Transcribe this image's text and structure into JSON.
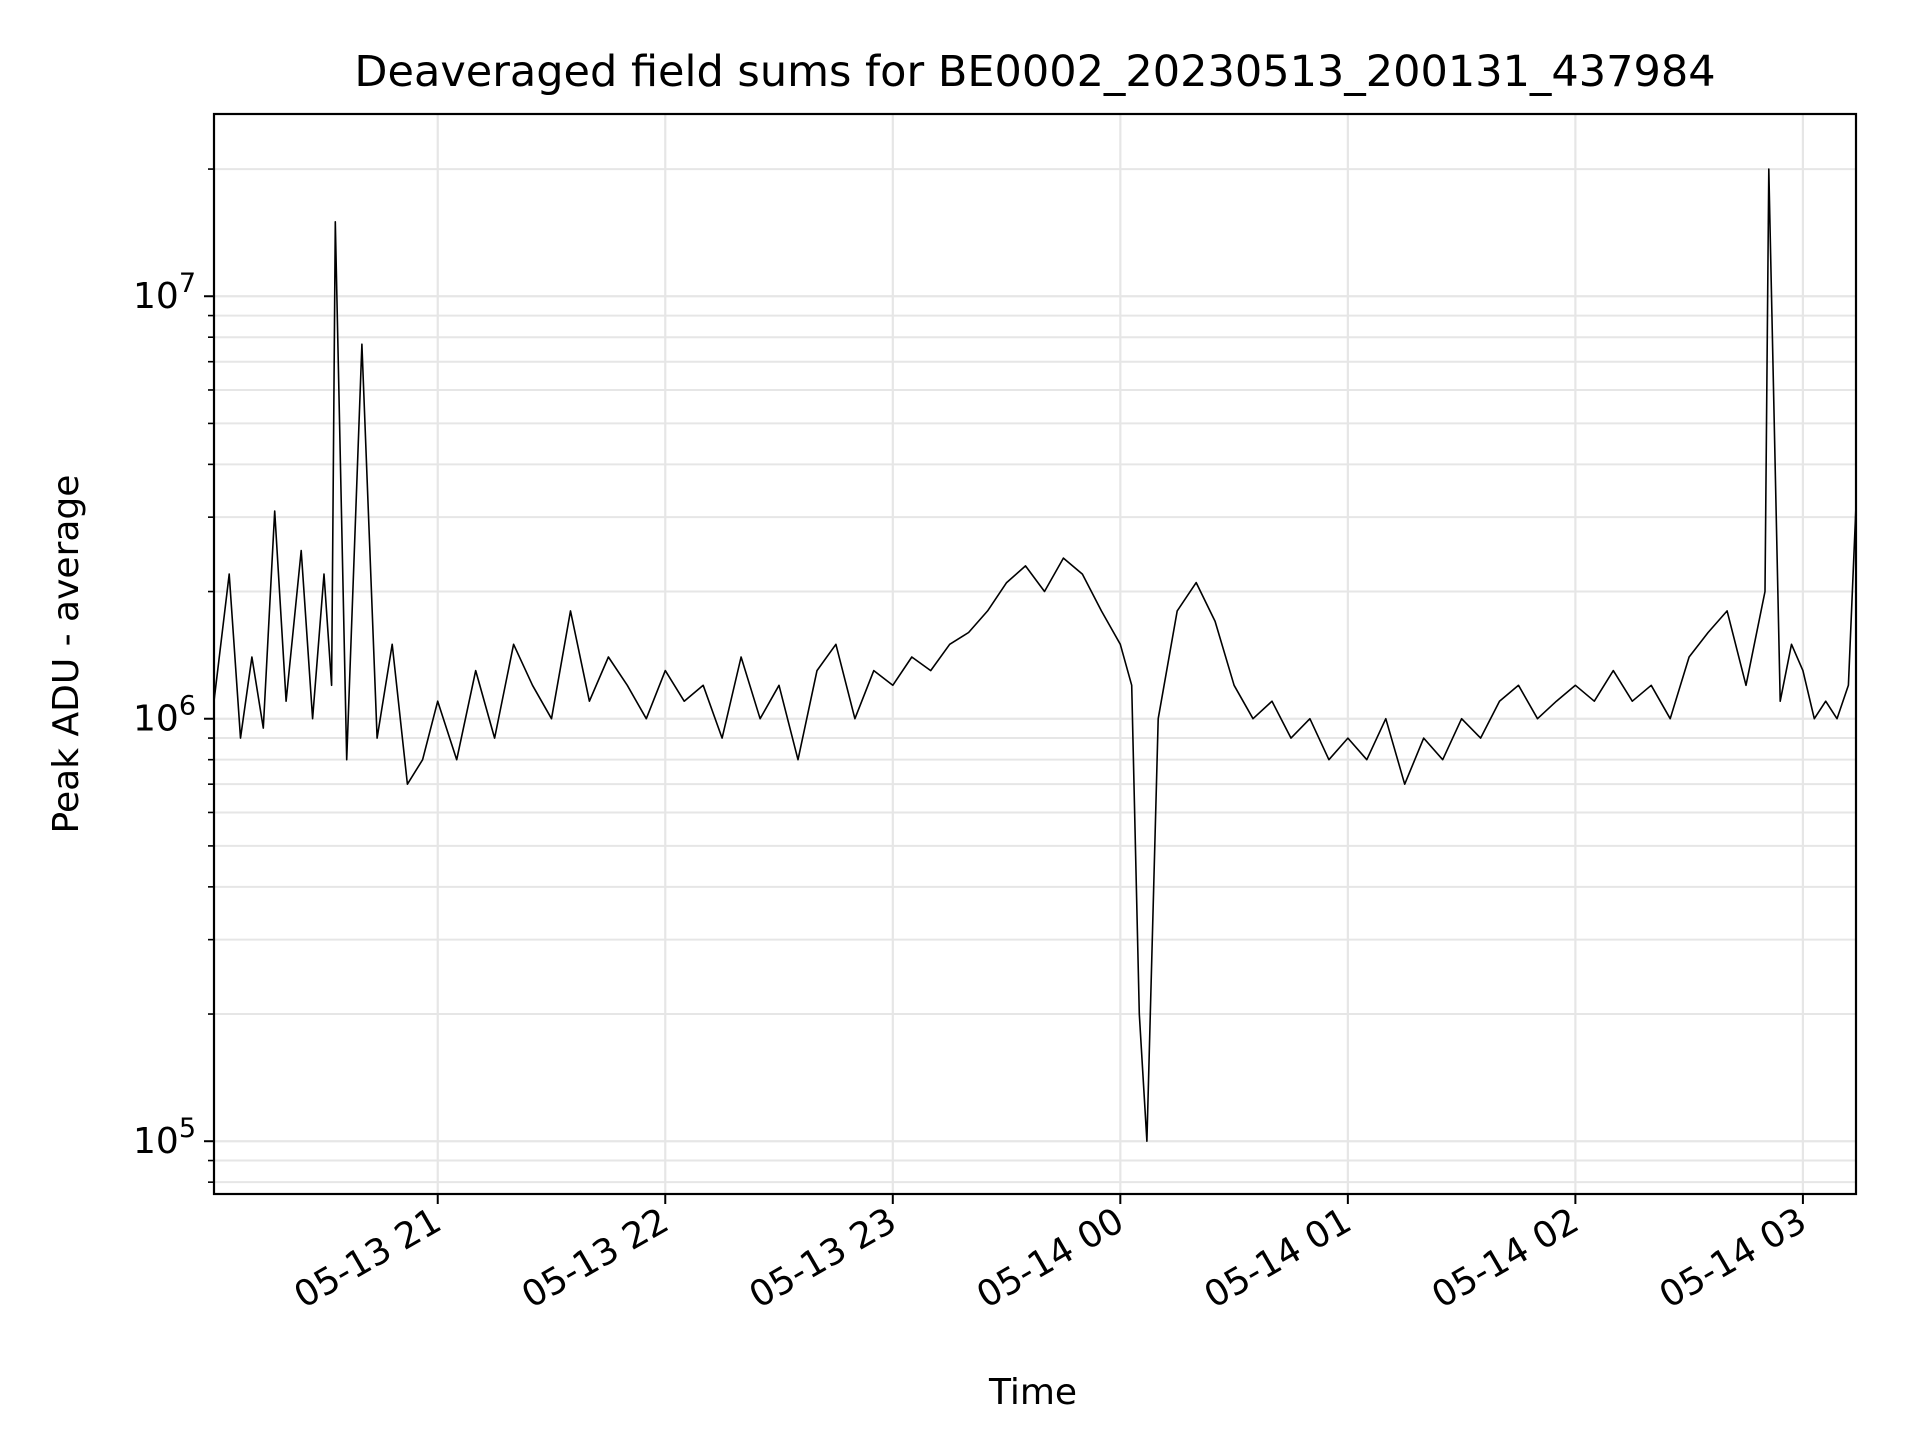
{
  "chart_data": {
    "type": "line",
    "title": "Deaveraged field sums for BE0002_20230513_200131_437984",
    "xlabel": "Time",
    "ylabel": "Peak ADU - average",
    "yscale": "log",
    "grid": true,
    "line_color": "#000000",
    "grid_color": "#e6e6e6",
    "xlim": [
      "2023-05-13 20:01",
      "2023-05-14 03:14"
    ],
    "ylim": [
      75000,
      27000000
    ],
    "x_ticks": [
      {
        "value": "2023-05-13 21:00",
        "label": "05-13 21"
      },
      {
        "value": "2023-05-13 22:00",
        "label": "05-13 22"
      },
      {
        "value": "2023-05-13 23:00",
        "label": "05-13 23"
      },
      {
        "value": "2023-05-14 00:00",
        "label": "05-14 00"
      },
      {
        "value": "2023-05-14 01:00",
        "label": "05-14 01"
      },
      {
        "value": "2023-05-14 02:00",
        "label": "05-14 02"
      },
      {
        "value": "2023-05-14 03:00",
        "label": "05-14 03"
      }
    ],
    "y_ticks": [
      {
        "value": 100000,
        "base": "10",
        "exp": "5"
      },
      {
        "value": 1000000,
        "base": "10",
        "exp": "6"
      },
      {
        "value": 10000000,
        "base": "10",
        "exp": "7"
      }
    ],
    "series": [
      {
        "x": [
          "2023-05-13 20:01",
          "2023-05-13 20:05",
          "2023-05-13 20:08",
          "2023-05-13 20:11",
          "2023-05-13 20:14",
          "2023-05-13 20:17",
          "2023-05-13 20:20",
          "2023-05-13 20:24",
          "2023-05-13 20:27",
          "2023-05-13 20:30",
          "2023-05-13 20:32",
          "2023-05-13 20:33",
          "2023-05-13 20:36",
          "2023-05-13 20:40",
          "2023-05-13 20:44",
          "2023-05-13 20:48",
          "2023-05-13 20:52",
          "2023-05-13 20:56",
          "2023-05-13 21:00",
          "2023-05-13 21:05",
          "2023-05-13 21:10",
          "2023-05-13 21:15",
          "2023-05-13 21:20",
          "2023-05-13 21:25",
          "2023-05-13 21:30",
          "2023-05-13 21:35",
          "2023-05-13 21:40",
          "2023-05-13 21:45",
          "2023-05-13 21:50",
          "2023-05-13 21:55",
          "2023-05-13 22:00",
          "2023-05-13 22:05",
          "2023-05-13 22:10",
          "2023-05-13 22:15",
          "2023-05-13 22:20",
          "2023-05-13 22:25",
          "2023-05-13 22:30",
          "2023-05-13 22:35",
          "2023-05-13 22:40",
          "2023-05-13 22:45",
          "2023-05-13 22:50",
          "2023-05-13 22:55",
          "2023-05-13 23:00",
          "2023-05-13 23:05",
          "2023-05-13 23:10",
          "2023-05-13 23:15",
          "2023-05-13 23:20",
          "2023-05-13 23:25",
          "2023-05-13 23:30",
          "2023-05-13 23:35",
          "2023-05-13 23:40",
          "2023-05-13 23:45",
          "2023-05-13 23:50",
          "2023-05-13 23:55",
          "2023-05-14 00:00",
          "2023-05-14 00:03",
          "2023-05-14 00:05",
          "2023-05-14 00:07",
          "2023-05-14 00:10",
          "2023-05-14 00:15",
          "2023-05-14 00:20",
          "2023-05-14 00:25",
          "2023-05-14 00:30",
          "2023-05-14 00:35",
          "2023-05-14 00:40",
          "2023-05-14 00:45",
          "2023-05-14 00:50",
          "2023-05-14 00:55",
          "2023-05-14 01:00",
          "2023-05-14 01:05",
          "2023-05-14 01:10",
          "2023-05-14 01:15",
          "2023-05-14 01:20",
          "2023-05-14 01:25",
          "2023-05-14 01:30",
          "2023-05-14 01:35",
          "2023-05-14 01:40",
          "2023-05-14 01:45",
          "2023-05-14 01:50",
          "2023-05-14 01:55",
          "2023-05-14 02:00",
          "2023-05-14 02:05",
          "2023-05-14 02:10",
          "2023-05-14 02:15",
          "2023-05-14 02:20",
          "2023-05-14 02:25",
          "2023-05-14 02:30",
          "2023-05-14 02:35",
          "2023-05-14 02:40",
          "2023-05-14 02:45",
          "2023-05-14 02:50",
          "2023-05-14 02:51",
          "2023-05-14 02:54",
          "2023-05-14 02:57",
          "2023-05-14 03:00",
          "2023-05-14 03:03",
          "2023-05-14 03:06",
          "2023-05-14 03:09",
          "2023-05-14 03:12",
          "2023-05-14 03:14"
        ],
        "y": [
          1100000,
          2200000,
          900000,
          1400000,
          950000,
          3100000,
          1100000,
          2500000,
          1000000,
          2200000,
          1200000,
          15000000,
          800000,
          7700000,
          900000,
          1500000,
          700000,
          800000,
          1100000,
          800000,
          1300000,
          900000,
          1500000,
          1200000,
          1000000,
          1800000,
          1100000,
          1400000,
          1200000,
          1000000,
          1300000,
          1100000,
          1200000,
          900000,
          1400000,
          1000000,
          1200000,
          800000,
          1300000,
          1500000,
          1000000,
          1300000,
          1200000,
          1400000,
          1300000,
          1500000,
          1600000,
          1800000,
          2100000,
          2300000,
          2000000,
          2400000,
          2200000,
          1800000,
          1500000,
          1200000,
          200000,
          100000,
          1000000,
          1800000,
          2100000,
          1700000,
          1200000,
          1000000,
          1100000,
          900000,
          1000000,
          800000,
          900000,
          800000,
          1000000,
          700000,
          900000,
          800000,
          1000000,
          900000,
          1100000,
          1200000,
          1000000,
          1100000,
          1200000,
          1100000,
          1300000,
          1100000,
          1200000,
          1000000,
          1400000,
          1600000,
          1800000,
          1200000,
          2000000,
          20000000,
          1100000,
          1500000,
          1300000,
          1000000,
          1100000,
          1000000,
          1200000,
          3200000
        ]
      }
    ]
  }
}
